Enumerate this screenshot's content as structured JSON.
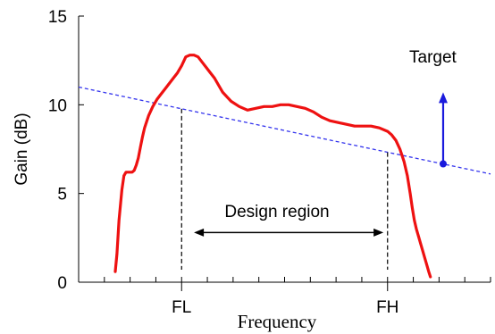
{
  "chart_data": {
    "type": "line",
    "title": "",
    "xlabel": "Frequency",
    "ylabel": "Gain (dB)",
    "ylim": [
      0,
      15
    ],
    "yticks": [
      0,
      5,
      10,
      15
    ],
    "xlim": [
      0,
      100
    ],
    "x_minor_ticks": 16,
    "grid": false,
    "x_labeled_ticks": [
      {
        "x": 25,
        "label": "FL"
      },
      {
        "x": 75,
        "label": "FH"
      }
    ],
    "series": [
      {
        "color": "#ee1111",
        "x": [
          8.9,
          9.3,
          9.8,
          10.5,
          11.0,
          11.5,
          12.0,
          12.5,
          13.0,
          13.5,
          14.0,
          14.5,
          15.0,
          15.5,
          16.0,
          17.0,
          18.0,
          19.0,
          20.0,
          21.0,
          22.0,
          23.0,
          24.0,
          25.0,
          26.0,
          27.0,
          28.0,
          29.0,
          30.0,
          31.0,
          32.0,
          33.0,
          34.0,
          35.0,
          37.0,
          39.0,
          41.0,
          43.0,
          45.0,
          47.0,
          49.0,
          51.0,
          53.0,
          55.0,
          57.0,
          59.0,
          61.0,
          63.0,
          65.0,
          67.0,
          69.0,
          71.0,
          73.0,
          75.0,
          76.0,
          77.0,
          78.0,
          79.0,
          79.8,
          80.5,
          81.0,
          81.5,
          82.0,
          82.5,
          83.0,
          83.5,
          84.0,
          84.5,
          85.0,
          85.4
        ],
        "y": [
          0.6,
          1.6,
          3.5,
          5.2,
          6.0,
          6.2,
          6.2,
          6.2,
          6.2,
          6.3,
          6.6,
          7.0,
          7.6,
          8.2,
          8.7,
          9.4,
          9.9,
          10.3,
          10.6,
          10.9,
          11.2,
          11.5,
          11.8,
          12.2,
          12.7,
          12.8,
          12.8,
          12.7,
          12.4,
          12.1,
          11.8,
          11.5,
          11.1,
          10.7,
          10.2,
          9.9,
          9.7,
          9.8,
          9.9,
          9.9,
          10.0,
          10.0,
          9.9,
          9.8,
          9.6,
          9.3,
          9.1,
          9.0,
          8.9,
          8.8,
          8.8,
          8.8,
          8.7,
          8.5,
          8.3,
          8.0,
          7.5,
          6.8,
          6.0,
          5.0,
          4.2,
          3.5,
          3.0,
          2.6,
          2.2,
          1.8,
          1.4,
          1.0,
          0.6,
          0.3
        ]
      }
    ],
    "target_line": {
      "x": [
        0,
        100
      ],
      "y": [
        11.0,
        6.1
      ],
      "color": "#3333ee",
      "style": "dashed"
    },
    "vertical_markers": [
      {
        "x": 25,
        "y_top": 9.77
      },
      {
        "x": 75,
        "y_top": 7.32
      }
    ],
    "annotations": {
      "design_region": "Design region",
      "target": "Target"
    },
    "design_region_arrow": {
      "x_start": 28,
      "x_end": 74,
      "y": 2.8
    },
    "target_arrow": {
      "x": 88.5,
      "y_from": 6.67,
      "y_to": 10.7,
      "color": "#1a1add"
    }
  }
}
